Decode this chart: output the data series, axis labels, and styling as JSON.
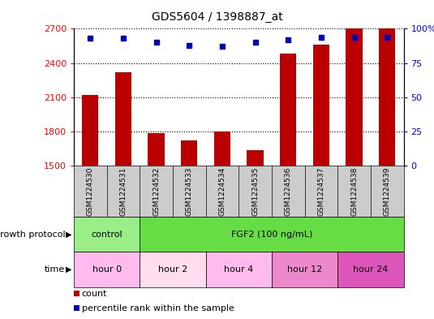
{
  "title": "GDS5604 / 1398887_at",
  "samples": [
    "GSM1224530",
    "GSM1224531",
    "GSM1224532",
    "GSM1224533",
    "GSM1224534",
    "GSM1224535",
    "GSM1224536",
    "GSM1224537",
    "GSM1224538",
    "GSM1224539"
  ],
  "counts": [
    2120,
    2320,
    1790,
    1720,
    1800,
    1640,
    2480,
    2560,
    2700,
    2700
  ],
  "percentile_ranks": [
    93,
    93,
    90,
    88,
    87,
    90,
    92,
    94,
    94,
    94
  ],
  "ylim_left": [
    1500,
    2700
  ],
  "ylim_right": [
    0,
    100
  ],
  "yticks_left": [
    1500,
    1800,
    2100,
    2400,
    2700
  ],
  "yticks_right": [
    0,
    25,
    50,
    75,
    100
  ],
  "bar_color": "#bb0000",
  "dot_color": "#0000bb",
  "growth_protocol_groups": [
    {
      "label": "control",
      "start": 0,
      "end": 2,
      "color": "#99ee88"
    },
    {
      "label": "FGF2 (100 ng/mL)",
      "start": 2,
      "end": 10,
      "color": "#66dd44"
    }
  ],
  "time_groups": [
    {
      "label": "hour 0",
      "start": 0,
      "end": 2,
      "color": "#ffbbee"
    },
    {
      "label": "hour 2",
      "start": 2,
      "end": 4,
      "color": "#ffddee"
    },
    {
      "label": "hour 4",
      "start": 4,
      "end": 6,
      "color": "#ffbbee"
    },
    {
      "label": "hour 12",
      "start": 6,
      "end": 8,
      "color": "#ee88cc"
    },
    {
      "label": "hour 24",
      "start": 8,
      "end": 10,
      "color": "#dd55bb"
    }
  ],
  "row_label_growth": "growth protocol",
  "row_label_time": "time",
  "legend_count_label": "count",
  "legend_pct_label": "percentile rank within the sample",
  "sample_bg_color": "#cccccc",
  "background_color": "#ffffff"
}
